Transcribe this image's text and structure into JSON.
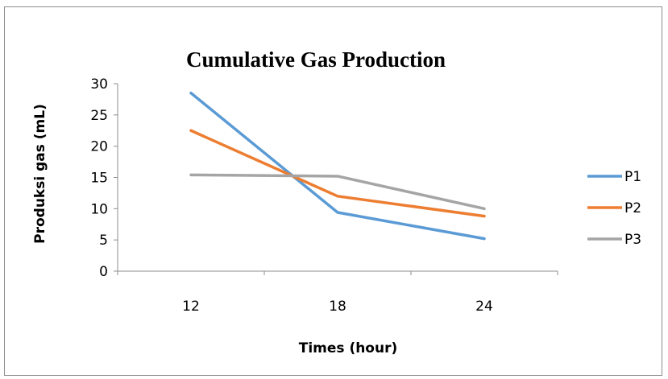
{
  "chart_data": {
    "type": "line",
    "title": "Cumulative Gas Production",
    "xlabel": "Times (hour)",
    "ylabel": "Produksi gas (mL)",
    "categories": [
      "12",
      "18",
      "24"
    ],
    "ylim": [
      0,
      30
    ],
    "yticks": [
      "0",
      "5",
      "10",
      "15",
      "20",
      "25",
      "30"
    ],
    "grid": false,
    "legend_position": "right",
    "series": [
      {
        "name": "P1",
        "color": "#5B9BD5",
        "values": [
          28.5,
          9.4,
          5.2
        ]
      },
      {
        "name": "P2",
        "color": "#ED7D31",
        "values": [
          22.5,
          12.0,
          8.8
        ]
      },
      {
        "name": "P3",
        "color": "#A5A5A5",
        "values": [
          15.4,
          15.2,
          10.0
        ]
      }
    ]
  }
}
